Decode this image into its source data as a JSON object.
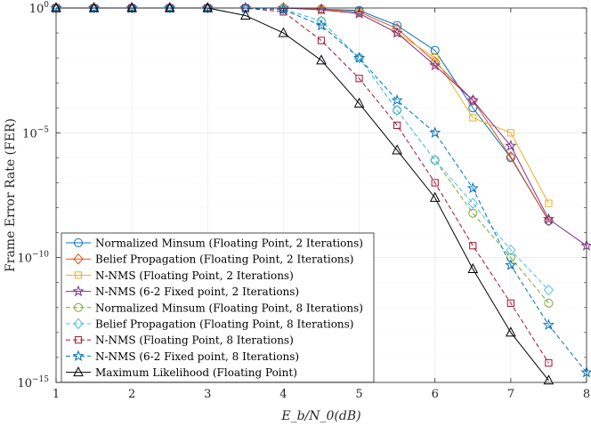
{
  "chart_data": {
    "type": "line",
    "title": "",
    "xlabel": "E_b/N_0(dB)",
    "ylabel": "Frame Error Rate (FER)",
    "xlim": [
      1,
      8
    ],
    "ylim": [
      1e-15,
      1
    ],
    "yscale": "log",
    "grid": true,
    "legend_position": "bottom-left",
    "x_ticks": [
      "1",
      "2",
      "3",
      "4",
      "5",
      "6",
      "7",
      "8"
    ],
    "y_ticks": [
      {
        "base": "10",
        "exp": "0",
        "value": 1
      },
      {
        "base": "10",
        "exp": "−5",
        "value": 1e-05
      },
      {
        "base": "10",
        "exp": "−10",
        "value": 1e-10
      },
      {
        "base": "10",
        "exp": "−15",
        "value": 1e-15
      }
    ],
    "series": [
      {
        "name": "Normalized Minsum (Floating Point, 2 Iterations)",
        "color": "#0072BD",
        "marker": "circle",
        "dash": "solid",
        "x": [
          1,
          1.5,
          2,
          2.5,
          3,
          3.5,
          4,
          4.5,
          5,
          5.5,
          6,
          6.5,
          7,
          7.5
        ],
        "y": [
          1,
          1,
          1,
          1,
          1,
          1,
          1,
          0.9,
          0.8,
          0.2,
          0.02,
          0.0001,
          1e-06,
          3e-09
        ]
      },
      {
        "name": "Belief Propagation (Floating Point, 2 Iterations)",
        "color": "#D95319",
        "marker": "diamond",
        "dash": "solid",
        "x": [
          1,
          1.5,
          2,
          2.5,
          3,
          3.5,
          4,
          4.5,
          5,
          5.5,
          6,
          6.5,
          7,
          7.5
        ],
        "y": [
          1,
          1,
          1,
          1,
          1,
          1,
          1,
          0.9,
          0.7,
          0.15,
          0.007,
          0.0002,
          1.1e-06,
          3e-09
        ]
      },
      {
        "name": "N-NMS (Floating Point, 2 Iterations)",
        "color": "#EDB120",
        "marker": "square",
        "dash": "solid",
        "x": [
          1,
          1.5,
          2,
          2.5,
          3,
          3.5,
          4,
          4.5,
          5,
          5.5,
          6,
          6.5,
          7,
          7.5
        ],
        "y": [
          1,
          1,
          1,
          1,
          1,
          1,
          1,
          0.85,
          0.6,
          0.1,
          0.01,
          4e-05,
          1e-05,
          1.5e-08
        ]
      },
      {
        "name": "N-NMS (6-2 Fixed point, 2 Iterations)",
        "color": "#7E2F8E",
        "marker": "star",
        "dash": "solid",
        "x": [
          1,
          1.5,
          2,
          2.5,
          3,
          3.5,
          4,
          4.5,
          5,
          5.5,
          6,
          6.5,
          7,
          7.5,
          8
        ],
        "y": [
          1,
          1,
          1,
          1,
          1,
          1,
          1,
          0.85,
          0.6,
          0.1,
          0.005,
          0.0002,
          3e-06,
          3.5e-09,
          3e-10
        ]
      },
      {
        "name": "Normalized Minsum (Floating Point, 8 Iterations)",
        "color": "#77AC30",
        "marker": "circle",
        "dash": "dashed",
        "x": [
          1,
          1.5,
          2,
          2.5,
          3,
          3.5,
          4,
          4.5,
          5,
          5.5,
          6,
          6.5,
          7,
          7.5
        ],
        "y": [
          1,
          1,
          1,
          1,
          1,
          1,
          0.9,
          0.3,
          0.01,
          8e-05,
          8e-07,
          6e-09,
          1e-10,
          1.5e-12
        ]
      },
      {
        "name": "Belief Propagation (Floating Point, 8 Iterations)",
        "color": "#4DBEEE",
        "marker": "diamond",
        "dash": "dashed",
        "x": [
          1,
          1.5,
          2,
          2.5,
          3,
          3.5,
          4,
          4.5,
          5,
          5.5,
          6,
          6.5,
          7,
          7.5
        ],
        "y": [
          1,
          1,
          1,
          1,
          1,
          1,
          0.9,
          0.3,
          0.01,
          8e-05,
          8e-07,
          1.5e-08,
          2e-10,
          5e-12
        ]
      },
      {
        "name": "N-NMS (Floating Point, 8 Iterations)",
        "color": "#A2142F",
        "marker": "square",
        "dash": "dashed",
        "x": [
          1,
          1.5,
          2,
          2.5,
          3,
          3.5,
          4,
          4.5,
          5,
          5.5,
          6,
          6.5,
          7,
          7.5
        ],
        "y": [
          1,
          1,
          1,
          1,
          1,
          1,
          0.7,
          0.05,
          0.0015,
          2e-05,
          1e-07,
          3e-10,
          1.5e-12,
          6e-15
        ]
      },
      {
        "name": "N-NMS (6-2 Fixed point, 8 Iterations)",
        "color": "#0072BD",
        "marker": "star",
        "dash": "dashed",
        "x": [
          1,
          1.5,
          2,
          2.5,
          3,
          3.5,
          4,
          4.5,
          5,
          5.5,
          6,
          6.5,
          7,
          7.5,
          8
        ],
        "y": [
          1,
          1,
          1,
          1,
          1,
          1,
          0.85,
          0.2,
          0.01,
          0.0002,
          1e-05,
          6e-08,
          5e-11,
          2e-13,
          2.5e-15
        ]
      },
      {
        "name": "Maximum Likelihood (Floating Point)",
        "color": "#000000",
        "marker": "triangle",
        "dash": "solid",
        "x": [
          1,
          1.5,
          2,
          2.5,
          3,
          3.5,
          4,
          4.5,
          5,
          5.5,
          6,
          6.5,
          7,
          7.5
        ],
        "y": [
          1,
          1,
          1,
          1,
          1,
          0.5,
          0.1,
          0.008,
          0.00015,
          2e-06,
          2.5e-08,
          3.5e-11,
          1e-13,
          1.2e-15
        ]
      }
    ]
  }
}
